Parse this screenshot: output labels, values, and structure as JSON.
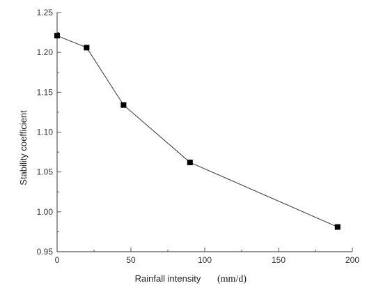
{
  "chart_data": {
    "type": "line",
    "title": "",
    "xlabel": "Rainfall intensity",
    "xunit": "(mm/d)",
    "ylabel": "Stability coefficient",
    "xlim": [
      0,
      200
    ],
    "ylim": [
      0.95,
      1.25
    ],
    "xticks": [
      "0",
      "50",
      "100",
      "150",
      "200"
    ],
    "yticks": [
      "0.95",
      "1.00",
      "1.05",
      "1.10",
      "1.15",
      "1.20",
      "1.25"
    ],
    "grid": false,
    "legend": "none",
    "series": [
      {
        "x": [
          0,
          20,
          45,
          90,
          190
        ],
        "y": [
          1.221,
          1.206,
          1.134,
          1.062,
          0.981
        ],
        "color": "#000000",
        "marker": "square"
      }
    ]
  }
}
